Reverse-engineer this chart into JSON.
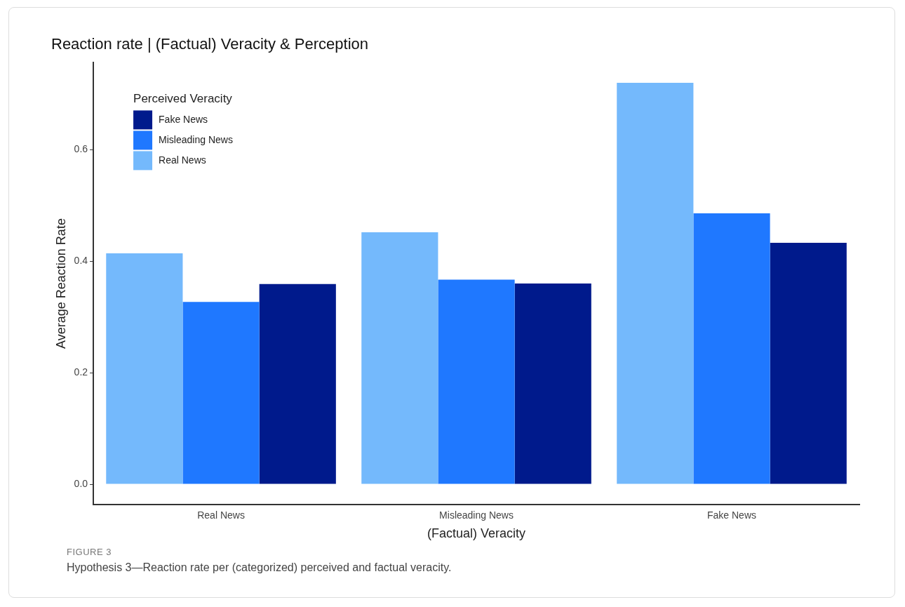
{
  "chart_data": {
    "type": "bar",
    "title": "Reaction rate | (Factual) Veracity & Perception",
    "xlabel": "(Factual) Veracity",
    "ylabel": "Average Reaction Rate",
    "legend_title": "Perceived Veracity",
    "legend": "top left",
    "grid": false,
    "categories": [
      "Real News",
      "Misleading News",
      "Fake News"
    ],
    "series": [
      {
        "name": "Real News",
        "color": "#74b9fc",
        "values": [
          0.414,
          0.452,
          0.72
        ]
      },
      {
        "name": "Misleading News",
        "color": "#1f78ff",
        "values": [
          0.327,
          0.367,
          0.486
        ]
      },
      {
        "name": "Fake News",
        "color": "#001a8c",
        "values": [
          0.359,
          0.36,
          0.433
        ]
      }
    ],
    "ylim": [
      -0.036,
      0.756
    ],
    "yticks": [
      {
        "value": 0,
        "label": "0.0"
      },
      {
        "value": 0.2,
        "label": "0.2"
      },
      {
        "value": 0.4,
        "label": "0.4"
      },
      {
        "value": 0.6,
        "label": "0.6"
      }
    ],
    "annotations": [
      "FIGURE 3",
      "Hypothesis 3—Reaction rate per (categorized) perceived and factual veracity."
    ]
  }
}
